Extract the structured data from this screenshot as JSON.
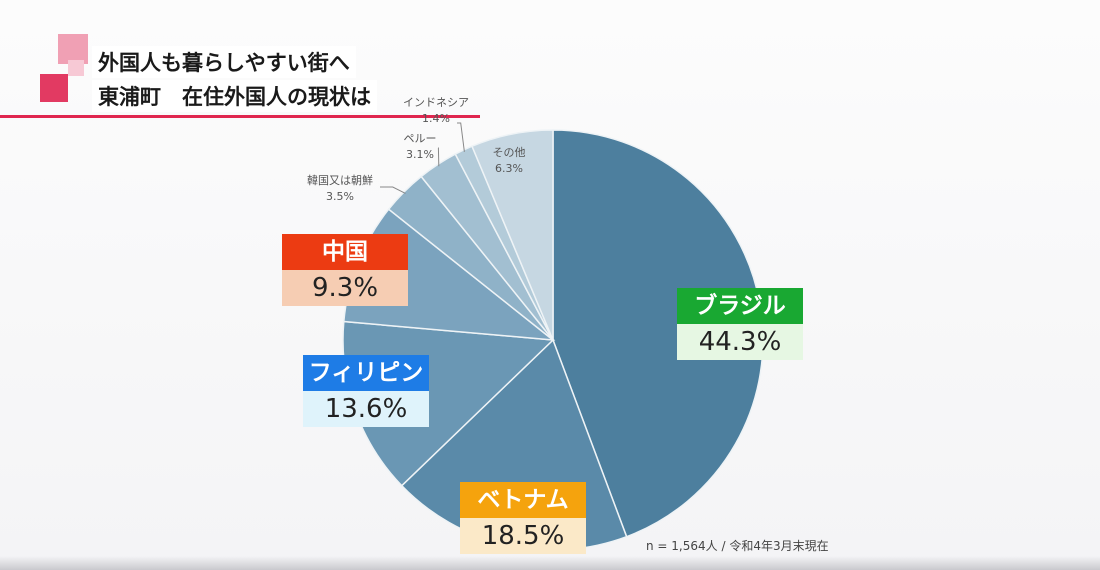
{
  "header": {
    "title_line1": "外国人も暮らしやすい街へ",
    "title_line2": "東浦町　在住外国人の現状は"
  },
  "chart_data": {
    "type": "pie",
    "categories": [
      "ブラジル",
      "ベトナム",
      "フィリピン",
      "中国",
      "韓国又は朝鮮",
      "ペルー",
      "インドネシア",
      "その他"
    ],
    "values": [
      44.3,
      18.5,
      13.6,
      9.3,
      3.5,
      3.1,
      1.4,
      6.3
    ],
    "value_labels": [
      "44.3%",
      "18.5%",
      "13.6%",
      "9.3%",
      "3.5%",
      "3.1%",
      "1.4%",
      "6.3%"
    ],
    "unit": "%",
    "note": "n = 1,564人 / 令和4年3月末現在",
    "colors": {
      "slices": [
        "#4d7f9e",
        "#5a8aa9",
        "#6a97b4",
        "#7ba3be",
        "#8fb2c8",
        "#a2bfd1",
        "#b3cbd9",
        "#c6d7e2"
      ],
      "badge_brazil": "#19a832",
      "badge_brazil_bg": "#e6f7e3",
      "badge_vietnam": "#f5a30d",
      "badge_vietnam_bg": "#fbe9c8",
      "badge_philippines": "#1e7ce6",
      "badge_philippines_bg": "#dff3fb",
      "badge_china": "#ec3b12",
      "badge_china_bg": "#f6cdb3"
    }
  }
}
